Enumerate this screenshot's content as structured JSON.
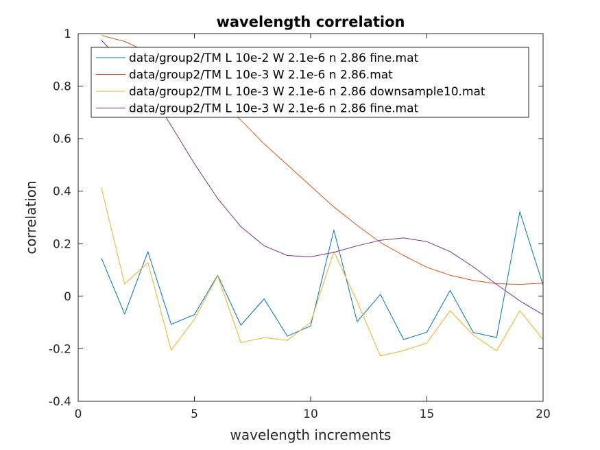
{
  "chart_data": {
    "type": "line",
    "title": "wavelength correlation",
    "xlabel": "wavelength increments",
    "ylabel": "correlation",
    "xlim": [
      0,
      20
    ],
    "ylim": [
      -0.4,
      1
    ],
    "xticks": [
      0,
      5,
      10,
      15,
      20
    ],
    "yticks": [
      -0.4,
      -0.2,
      0,
      0.2,
      0.4,
      0.6,
      0.8,
      1
    ],
    "xtick_labels": [
      "0",
      "5",
      "10",
      "15",
      "20"
    ],
    "ytick_labels": [
      "-0.4",
      "-0.2",
      "0",
      "0.2",
      "0.4",
      "0.6",
      "0.8",
      "1"
    ],
    "legend_position": "top",
    "grid": false,
    "x": [
      1,
      2,
      3,
      4,
      5,
      6,
      7,
      8,
      9,
      10,
      11,
      12,
      13,
      14,
      15,
      16,
      17,
      18,
      19,
      20
    ],
    "series": [
      {
        "name": "data/group2/TM L 10e-2 W 2.1e-6 n 2.86 fine.mat",
        "color": "#0072BD",
        "values": [
          0.145,
          -0.068,
          0.17,
          -0.107,
          -0.07,
          0.08,
          -0.11,
          -0.01,
          -0.152,
          -0.113,
          0.252,
          -0.097,
          0.007,
          -0.165,
          -0.137,
          0.022,
          -0.138,
          -0.157,
          0.322,
          0.042
        ]
      },
      {
        "name": "data/group2/TM L 10e-3 W 2.1e-6 n 2.86.mat",
        "color": "#D95319",
        "values": [
          0.993,
          0.97,
          0.93,
          0.87,
          0.8,
          0.75,
          0.67,
          0.58,
          0.5,
          0.42,
          0.34,
          0.27,
          0.205,
          0.155,
          0.11,
          0.08,
          0.06,
          0.048,
          0.045,
          0.05
        ]
      },
      {
        "name": "data/group2/TM L 10e-3 W 2.1e-6 n 2.86 downsample10.mat",
        "color": "#EDB120",
        "values": [
          0.413,
          0.047,
          0.128,
          -0.205,
          -0.088,
          0.078,
          -0.176,
          -0.158,
          -0.168,
          -0.1,
          0.17,
          -0.02,
          -0.227,
          -0.207,
          -0.178,
          -0.055,
          -0.148,
          -0.208,
          -0.055,
          -0.165
        ]
      },
      {
        "name": "data/group2/TM L 10e-3 W 2.1e-6 n 2.86 fine.mat",
        "color": "#7E2F8E",
        "values": [
          0.975,
          0.88,
          0.79,
          0.65,
          0.505,
          0.372,
          0.265,
          0.192,
          0.155,
          0.15,
          0.167,
          0.192,
          0.213,
          0.222,
          0.208,
          0.17,
          0.112,
          0.045,
          -0.018,
          -0.07
        ]
      }
    ]
  }
}
